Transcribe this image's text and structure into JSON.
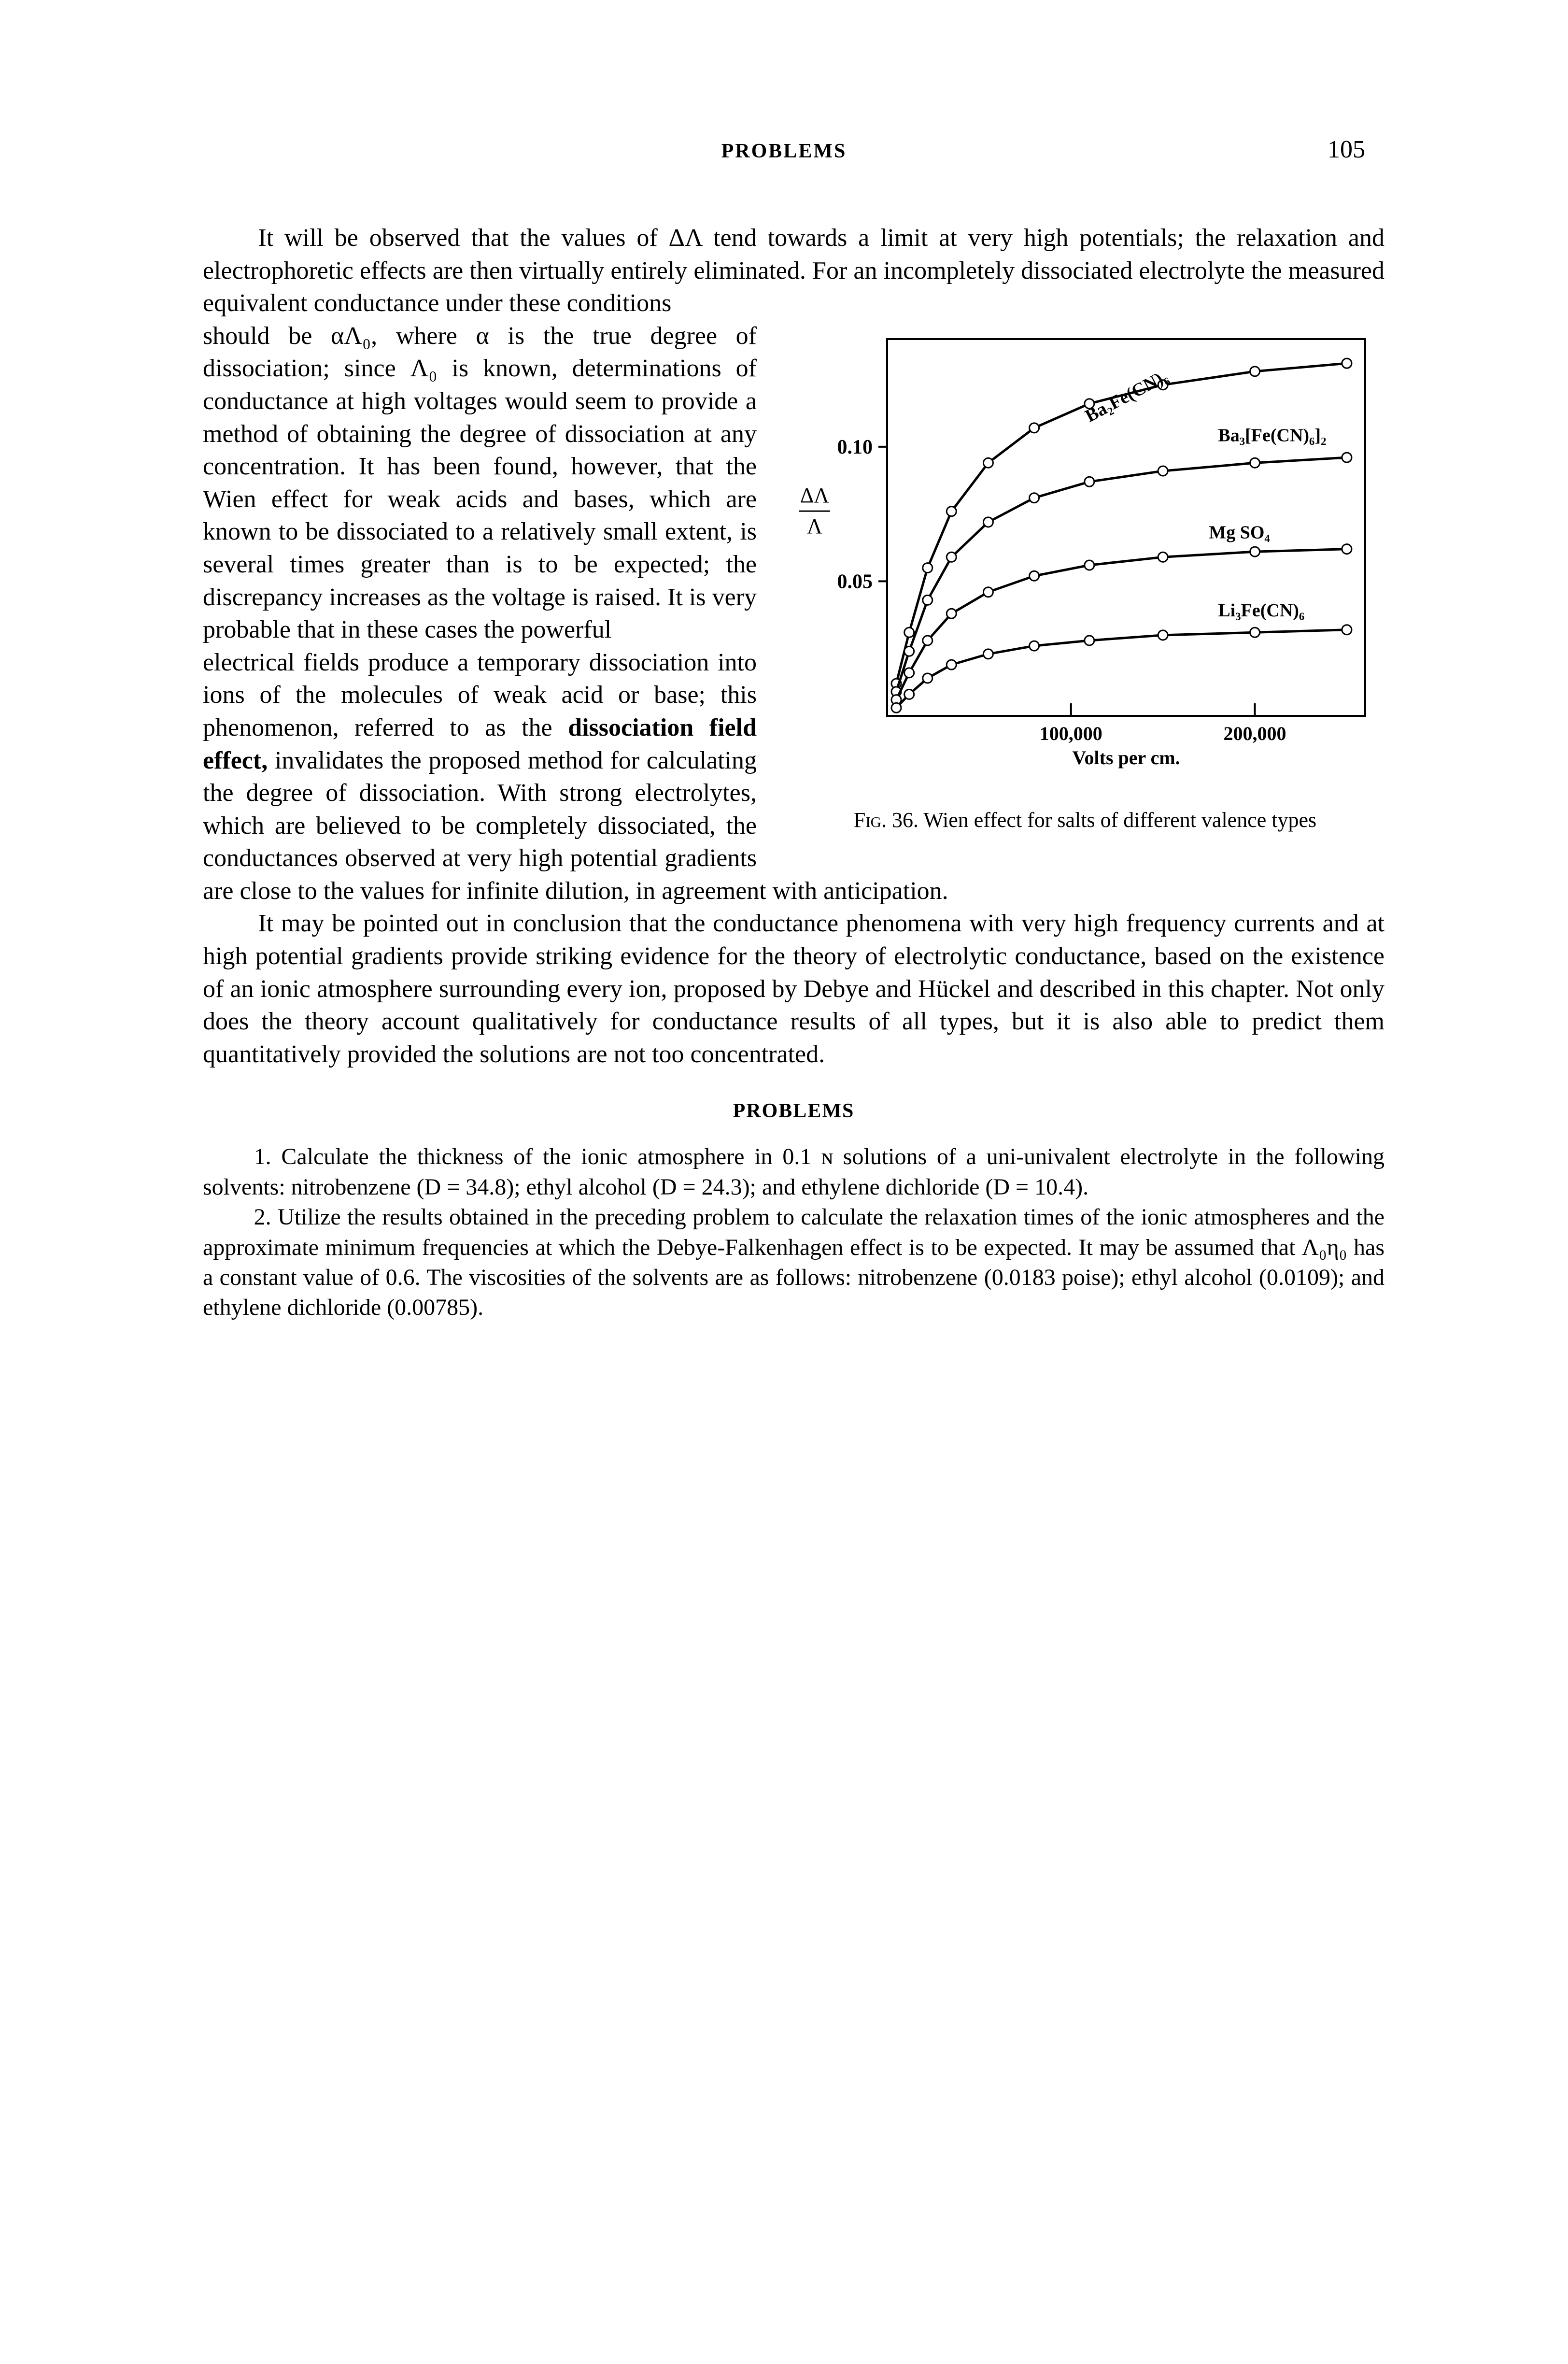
{
  "header": {
    "title": "PROBLEMS",
    "page_number": "105"
  },
  "body": {
    "p1a": "It will be observed that the values of ΔΛ tend towards a limit at very high potentials; the relaxation and electrophoretic effects are then virtually entirely eliminated.  For an incompletely dissociated electrolyte the measured equivalent conductance under these conditions ",
    "p1b_wrap": "should be αΛ₀, where α is the true degree of dissociation; since Λ₀ is known, determinations of conductance at high voltages would seem to provide a method of obtaining the degree of dissociation at any concentration.  It has been found, however, that the Wien effect for weak acids and bases, which are known to be dissociated to a relatively small extent, is several times greater than is to be expected; the discrepancy increases as the voltage is raised.  It is very probable that in these cases the powerful ",
    "p1c": "electrical fields produce a temporary dissociation into ions of the molecules of weak acid or base; this phenomenon, referred to as the ",
    "p1c_bold": "dissociation field effect,",
    "p1d": " invalidates the proposed method for calculating the degree of dissociation.  With strong electrolytes, which are believed to be completely dissociated, the conductances observed at very high potential gradients are close to the values for infinite dilution, in agreement with anticipation.",
    "p2": "It may be pointed out in conclusion that the conductance phenomena with very high frequency currents and at high potential gradients provide striking evidence for the theory of electrolytic conductance, based on the existence of an ionic atmosphere surrounding every ion, proposed by Debye and Hückel and described in this chapter.  Not only does the theory account qualitatively for conductance results of all types, but it is also able to predict them quantitatively provided the solutions are not too concentrated."
  },
  "figure": {
    "type": "line",
    "caption_a": "Fig. 36.",
    "caption_b": "  Wien effect for salts of different valence types",
    "x_label": "Volts per cm.",
    "y_label_top": "ΔΛ",
    "y_label_bot": "Λ",
    "y_ticks": [
      {
        "val": 0.05,
        "label": "0.05"
      },
      {
        "val": 0.1,
        "label": "0.10"
      }
    ],
    "x_ticks": [
      {
        "val": 100000,
        "label": "100,000"
      },
      {
        "val": 200000,
        "label": "200,000"
      }
    ],
    "xlim": [
      0,
      260000
    ],
    "ylim": [
      0,
      0.14
    ],
    "background_color": "#ffffff",
    "axis_color": "#000000",
    "axis_width": 4,
    "curve_width": 5,
    "marker_radius": 10,
    "marker_stroke": 3,
    "marker_fill": "#ffffff",
    "series": [
      {
        "name": "Ba2Fe(CN)6",
        "label": "Ba₂Fe(CN)₆",
        "label_rot": -28,
        "label_pos": {
          "x": 110000,
          "y": 0.109
        },
        "points": [
          {
            "x": 5000,
            "y": 0.012
          },
          {
            "x": 12000,
            "y": 0.031
          },
          {
            "x": 22000,
            "y": 0.055
          },
          {
            "x": 35000,
            "y": 0.076
          },
          {
            "x": 55000,
            "y": 0.094
          },
          {
            "x": 80000,
            "y": 0.107
          },
          {
            "x": 110000,
            "y": 0.116
          },
          {
            "x": 150000,
            "y": 0.123
          },
          {
            "x": 200000,
            "y": 0.128
          },
          {
            "x": 250000,
            "y": 0.131
          }
        ]
      },
      {
        "name": "Ba3[Fe(CN)6]2",
        "label": "Ba₃[Fe(CN)₆]₂",
        "label_rot": 0,
        "label_pos": {
          "x": 180000,
          "y": 0.102
        },
        "points": [
          {
            "x": 5000,
            "y": 0.009
          },
          {
            "x": 12000,
            "y": 0.024
          },
          {
            "x": 22000,
            "y": 0.043
          },
          {
            "x": 35000,
            "y": 0.059
          },
          {
            "x": 55000,
            "y": 0.072
          },
          {
            "x": 80000,
            "y": 0.081
          },
          {
            "x": 110000,
            "y": 0.087
          },
          {
            "x": 150000,
            "y": 0.091
          },
          {
            "x": 200000,
            "y": 0.094
          },
          {
            "x": 250000,
            "y": 0.096
          }
        ]
      },
      {
        "name": "MgSO4",
        "label": "Mg SO₄",
        "label_rot": 0,
        "label_pos": {
          "x": 175000,
          "y": 0.066
        },
        "points": [
          {
            "x": 5000,
            "y": 0.006
          },
          {
            "x": 12000,
            "y": 0.016
          },
          {
            "x": 22000,
            "y": 0.028
          },
          {
            "x": 35000,
            "y": 0.038
          },
          {
            "x": 55000,
            "y": 0.046
          },
          {
            "x": 80000,
            "y": 0.052
          },
          {
            "x": 110000,
            "y": 0.056
          },
          {
            "x": 150000,
            "y": 0.059
          },
          {
            "x": 200000,
            "y": 0.061
          },
          {
            "x": 250000,
            "y": 0.062
          }
        ]
      },
      {
        "name": "Li3Fe(CN)6",
        "label": "Li₃Fe(CN)₆",
        "label_rot": 0,
        "label_pos": {
          "x": 180000,
          "y": 0.037
        },
        "points": [
          {
            "x": 5000,
            "y": 0.003
          },
          {
            "x": 12000,
            "y": 0.008
          },
          {
            "x": 22000,
            "y": 0.014
          },
          {
            "x": 35000,
            "y": 0.019
          },
          {
            "x": 55000,
            "y": 0.023
          },
          {
            "x": 80000,
            "y": 0.026
          },
          {
            "x": 110000,
            "y": 0.028
          },
          {
            "x": 150000,
            "y": 0.03
          },
          {
            "x": 200000,
            "y": 0.031
          },
          {
            "x": 250000,
            "y": 0.032
          }
        ]
      }
    ]
  },
  "problems": {
    "heading": "PROBLEMS",
    "q1": "1. Calculate the thickness of the ionic atmosphere in 0.1 ɴ solutions of a uni-univalent electrolyte in the following solvents: nitrobenzene (D = 34.8); ethyl alcohol (D = 24.3); and ethylene dichloride (D = 10.4).",
    "q2": "2. Utilize the results obtained in the preceding problem to calculate the relaxation times of the ionic atmospheres and the approximate minimum frequencies at which the Debye-Falkenhagen effect is to be expected.  It may be assumed that Λ₀η₀ has a constant value of 0.6.  The viscosities of the solvents are as follows: nitrobenzene (0.0183 poise); ethyl alcohol (0.0109); and ethylene dichloride (0.00785)."
  }
}
